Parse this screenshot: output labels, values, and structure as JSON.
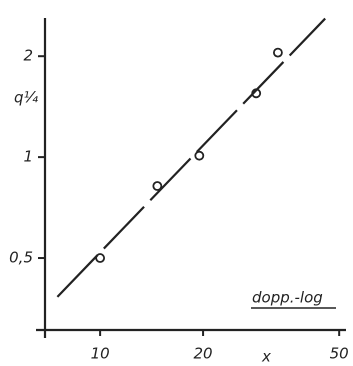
{
  "chart_data": {
    "type": "scatter",
    "y_label": "q¼",
    "x_label": "x",
    "annotation": "dopp.-log",
    "log_x": true,
    "log_y": true,
    "color": "#222",
    "xlim": [
      6.9,
      52
    ],
    "ylim": [
      0.305,
      2.6
    ],
    "xticks": [
      10,
      20,
      50
    ],
    "yticks": [
      {
        "value": 0.5,
        "label": "0,5"
      },
      1,
      2
    ],
    "series": [
      {
        "style": "points",
        "x": [
          10,
          14.7,
          19.5,
          28.6,
          33.1
        ],
        "values": [
          0.5,
          0.82,
          1.01,
          1.55,
          2.05
        ]
      },
      {
        "style": "line",
        "x": [
          7.5,
          45.5
        ],
        "values": [
          0.383,
          2.59
        ]
      }
    ]
  }
}
